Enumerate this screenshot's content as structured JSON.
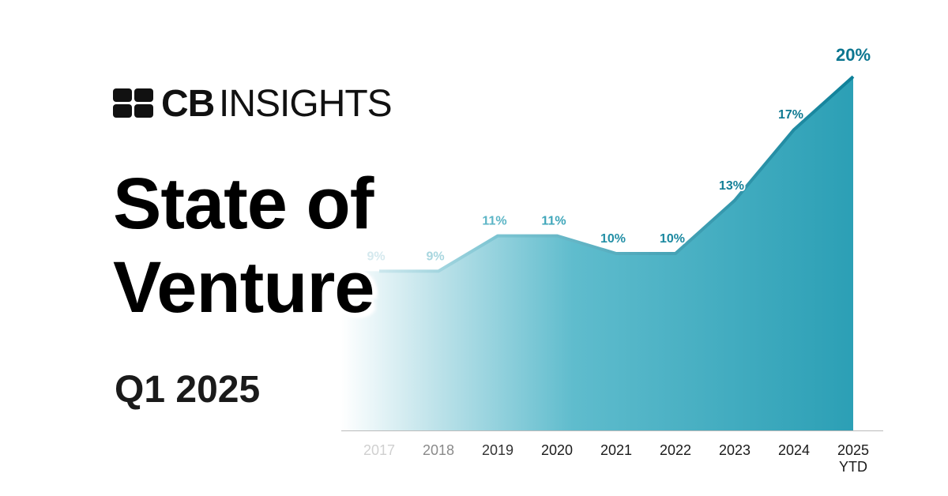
{
  "brand": {
    "bold": "CB",
    "light": "INSIGHTS"
  },
  "chart_data": {
    "type": "area",
    "title": "State of Venture",
    "subtitle": "Q1 2025",
    "categories": [
      "2017",
      "2018",
      "2019",
      "2020",
      "2021",
      "2022",
      "2023",
      "2024",
      "2025 YTD"
    ],
    "values": [
      9,
      9,
      11,
      11,
      10,
      10,
      13,
      17,
      20
    ],
    "value_labels": [
      "9%",
      "9%",
      "11%",
      "11%",
      "10%",
      "10%",
      "13%",
      "17%",
      "20%"
    ],
    "color": "#1a8fa5",
    "ylim": [
      0,
      20
    ],
    "grid": false
  }
}
